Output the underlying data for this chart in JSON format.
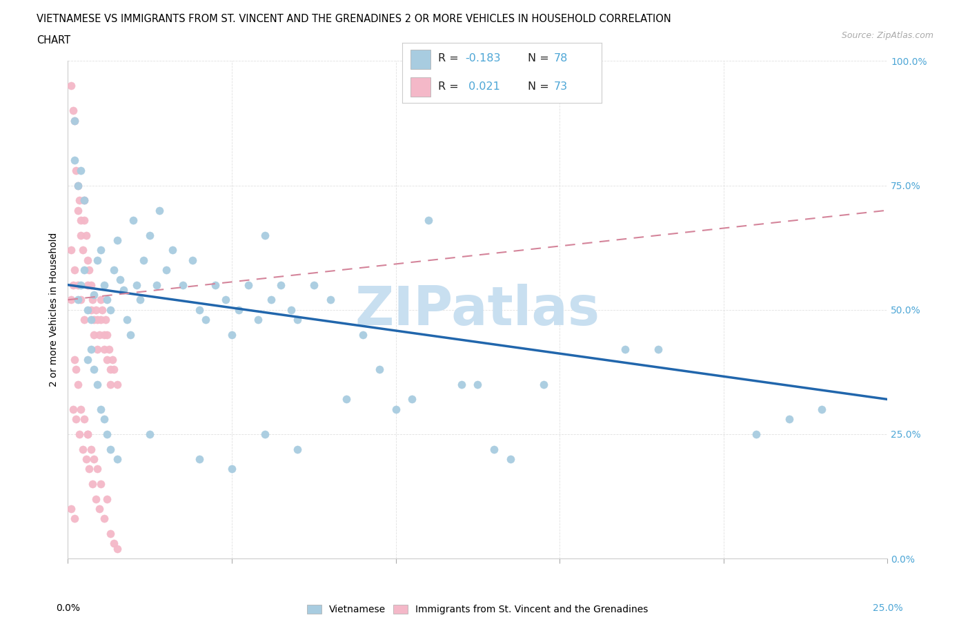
{
  "title_line1": "VIETNAMESE VS IMMIGRANTS FROM ST. VINCENT AND THE GRENADINES 2 OR MORE VEHICLES IN HOUSEHOLD CORRELATION",
  "title_line2": "CHART",
  "source_text": "Source: ZipAtlas.com",
  "ylabel": "2 or more Vehicles in Household",
  "xlim": [
    0.0,
    25.0
  ],
  "ylim": [
    0.0,
    100.0
  ],
  "xticks": [
    0.0,
    5.0,
    10.0,
    15.0,
    20.0,
    25.0
  ],
  "yticks": [
    0.0,
    25.0,
    50.0,
    75.0,
    100.0
  ],
  "color_blue_scatter": "#a8cce0",
  "color_pink_scatter": "#f4b8c8",
  "color_blue_line": "#2166ac",
  "color_pink_line": "#d4849a",
  "color_axis_blue": "#4da6d6",
  "color_legend_text_dark": "#222222",
  "watermark": "ZIPatlas",
  "watermark_color": "#c8dff0",
  "R_blue": -0.183,
  "N_blue": 78,
  "R_pink": 0.021,
  "N_pink": 73,
  "blue_trend_x": [
    0.0,
    25.0
  ],
  "blue_trend_y": [
    55.0,
    32.0
  ],
  "pink_trend_x": [
    0.0,
    25.0
  ],
  "pink_trend_y": [
    52.0,
    70.0
  ],
  "blue_x": [
    0.2,
    0.2,
    0.3,
    0.3,
    0.4,
    0.4,
    0.5,
    0.5,
    0.6,
    0.6,
    0.7,
    0.7,
    0.8,
    0.8,
    0.9,
    0.9,
    1.0,
    1.0,
    1.1,
    1.1,
    1.2,
    1.2,
    1.3,
    1.3,
    1.4,
    1.5,
    1.5,
    1.6,
    1.7,
    1.8,
    1.9,
    2.0,
    2.1,
    2.2,
    2.3,
    2.5,
    2.7,
    2.8,
    3.0,
    3.2,
    3.5,
    3.8,
    4.0,
    4.2,
    4.5,
    4.8,
    5.0,
    5.2,
    5.5,
    5.8,
    6.0,
    6.2,
    6.5,
    6.8,
    7.0,
    7.5,
    8.0,
    8.5,
    9.0,
    9.5,
    10.0,
    10.5,
    11.0,
    12.0,
    12.5,
    13.0,
    13.5,
    14.5,
    17.0,
    18.0,
    21.0,
    22.0,
    23.0,
    4.0,
    5.0,
    6.0,
    7.0,
    2.5
  ],
  "blue_y": [
    88,
    80,
    75,
    52,
    78,
    55,
    72,
    58,
    50,
    40,
    48,
    42,
    53,
    38,
    60,
    35,
    62,
    30,
    55,
    28,
    52,
    25,
    50,
    22,
    58,
    64,
    20,
    56,
    54,
    48,
    45,
    68,
    55,
    52,
    60,
    65,
    55,
    70,
    58,
    62,
    55,
    60,
    50,
    48,
    55,
    52,
    45,
    50,
    55,
    48,
    65,
    52,
    55,
    50,
    48,
    55,
    52,
    32,
    45,
    38,
    30,
    32,
    68,
    35,
    35,
    22,
    20,
    35,
    42,
    42,
    25,
    28,
    30,
    20,
    18,
    25,
    22,
    25
  ],
  "pink_x": [
    0.1,
    0.1,
    0.1,
    0.15,
    0.15,
    0.2,
    0.2,
    0.2,
    0.25,
    0.25,
    0.3,
    0.3,
    0.3,
    0.35,
    0.35,
    0.4,
    0.4,
    0.4,
    0.45,
    0.45,
    0.5,
    0.5,
    0.5,
    0.55,
    0.55,
    0.6,
    0.6,
    0.6,
    0.65,
    0.65,
    0.7,
    0.7,
    0.7,
    0.75,
    0.75,
    0.8,
    0.8,
    0.8,
    0.85,
    0.85,
    0.9,
    0.9,
    0.9,
    0.95,
    0.95,
    1.0,
    1.0,
    1.0,
    1.05,
    1.1,
    1.1,
    1.1,
    1.15,
    1.2,
    1.2,
    1.2,
    1.25,
    1.3,
    1.3,
    1.3,
    1.35,
    1.4,
    1.4,
    1.5,
    1.5,
    0.1,
    0.15,
    0.2,
    0.25,
    0.3,
    0.4,
    0.5,
    0.6
  ],
  "pink_y": [
    52,
    95,
    10,
    55,
    90,
    88,
    40,
    8,
    78,
    38,
    75,
    70,
    35,
    72,
    25,
    68,
    65,
    30,
    62,
    22,
    72,
    68,
    28,
    65,
    20,
    60,
    55,
    25,
    58,
    18,
    55,
    50,
    22,
    52,
    15,
    48,
    45,
    20,
    50,
    12,
    48,
    42,
    18,
    45,
    10,
    52,
    48,
    15,
    50,
    45,
    42,
    8,
    48,
    45,
    40,
    12,
    42,
    38,
    35,
    5,
    40,
    38,
    3,
    35,
    2,
    62,
    30,
    58,
    28,
    55,
    52,
    48,
    25
  ],
  "background_color": "#ffffff",
  "grid_color": "#e0e0e0"
}
